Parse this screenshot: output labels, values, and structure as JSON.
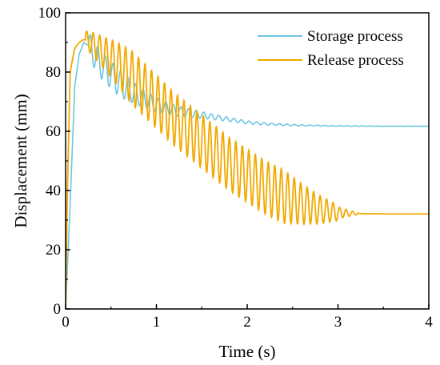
{
  "chart_data": {
    "type": "line",
    "xlabel": "Time (s)",
    "ylabel": "Displacement (mm)",
    "xlim": [
      0,
      4
    ],
    "ylim": [
      0,
      100
    ],
    "x_ticks": [
      "0",
      "1",
      "2",
      "3",
      "4"
    ],
    "y_ticks": [
      "0",
      "20",
      "40",
      "60",
      "80",
      "100"
    ],
    "legend_position": "top-right",
    "grid": false,
    "series": [
      {
        "name": "Storage process",
        "color": "#6ec6e0",
        "description_points": {
          "x": [
            0,
            0.05,
            0.1,
            0.15,
            0.2,
            0.25,
            0.4,
            0.6,
            0.8,
            1.0,
            1.2,
            1.4,
            1.6,
            1.8,
            2.0,
            2.2,
            2.4,
            2.6,
            2.8,
            3.0,
            3.5,
            4.0
          ],
          "y": [
            0,
            35,
            75,
            86,
            90,
            89,
            82,
            76,
            72,
            69,
            67,
            66,
            65,
            64,
            63,
            62.5,
            62.2,
            62,
            61.9,
            61.8,
            61.7,
            61.7
          ]
        }
      },
      {
        "name": "Release process",
        "color": "#f2a900",
        "description_points": {
          "x": [
            0,
            0.02,
            0.05,
            0.1,
            0.15,
            0.2,
            0.25,
            0.4,
            0.6,
            0.8,
            1.0,
            1.2,
            1.4,
            1.6,
            1.8,
            2.0,
            2.2,
            2.4,
            2.6,
            2.8,
            3.0,
            3.2,
            3.5,
            4.0
          ],
          "y": [
            0,
            40,
            80,
            88,
            90,
            91,
            90.5,
            87,
            82,
            76,
            70,
            64,
            59,
            54,
            49,
            45,
            41,
            38,
            35.5,
            33.5,
            32.5,
            32.2,
            32.1,
            32.1
          ]
        }
      }
    ]
  }
}
